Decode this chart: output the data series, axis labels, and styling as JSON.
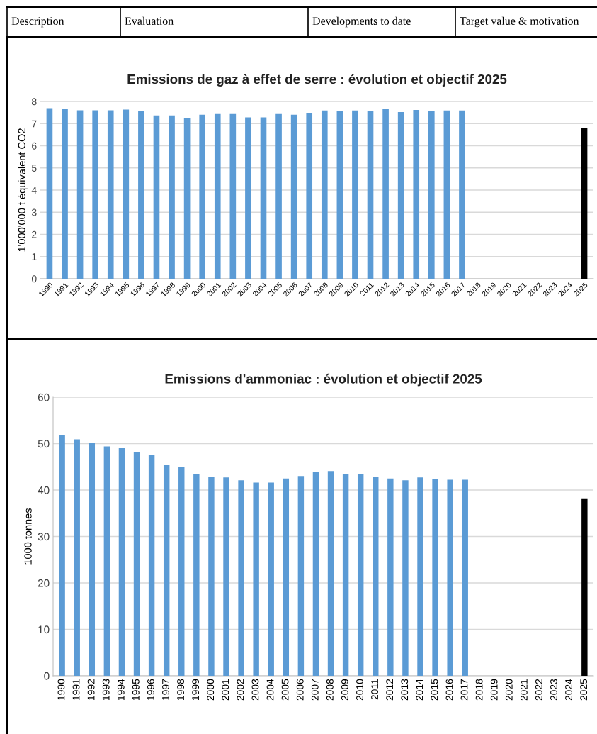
{
  "chart_data": [
    {
      "type": "other",
      "annotations": [
        "Description",
        "Evaluation",
        "Developments to date",
        "Target value & motivation"
      ]
    },
    {
      "type": "bar",
      "title": "Emissions de gaz à effet de serre : évolution et objectif 2025",
      "ylabel": "1'000'000 t équivalent CO2",
      "categories": [
        "1990",
        "1991",
        "1992",
        "1993",
        "1994",
        "1995",
        "1996",
        "1997",
        "1998",
        "1999",
        "2000",
        "2001",
        "2002",
        "2003",
        "2004",
        "2005",
        "2006",
        "2007",
        "2008",
        "2009",
        "2010",
        "2011",
        "2012",
        "2013",
        "2014",
        "2015",
        "2016",
        "2017",
        "2018",
        "2019",
        "2020",
        "2021",
        "2022",
        "2023",
        "2024",
        "2025"
      ],
      "values": [
        7.7,
        7.68,
        7.6,
        7.6,
        7.6,
        7.63,
        7.55,
        7.37,
        7.37,
        7.26,
        7.4,
        7.43,
        7.43,
        7.28,
        7.28,
        7.43,
        7.4,
        7.48,
        7.59,
        7.57,
        7.59,
        7.57,
        7.65,
        7.52,
        7.62,
        7.57,
        7.59,
        7.59,
        null,
        null,
        null,
        null,
        null,
        null,
        null,
        6.82
      ],
      "colors": [
        "#5b9bd5",
        "#5b9bd5",
        "#5b9bd5",
        "#5b9bd5",
        "#5b9bd5",
        "#5b9bd5",
        "#5b9bd5",
        "#5b9bd5",
        "#5b9bd5",
        "#5b9bd5",
        "#5b9bd5",
        "#5b9bd5",
        "#5b9bd5",
        "#5b9bd5",
        "#5b9bd5",
        "#5b9bd5",
        "#5b9bd5",
        "#5b9bd5",
        "#5b9bd5",
        "#5b9bd5",
        "#5b9bd5",
        "#5b9bd5",
        "#5b9bd5",
        "#5b9bd5",
        "#5b9bd5",
        "#5b9bd5",
        "#5b9bd5",
        "#5b9bd5",
        "#5b9bd5",
        "#5b9bd5",
        "#5b9bd5",
        "#5b9bd5",
        "#5b9bd5",
        "#5b9bd5",
        "#5b9bd5",
        "#000000"
      ],
      "ylim": [
        0,
        8
      ],
      "yticks": [
        0,
        1,
        2,
        3,
        4,
        5,
        6,
        7,
        8
      ],
      "grid": "y"
    },
    {
      "type": "bar",
      "title": "Emissions d'ammoniac : évolution et objectif 2025",
      "ylabel": "1000 tonnes",
      "categories": [
        "1990",
        "1991",
        "1992",
        "1993",
        "1994",
        "1995",
        "1996",
        "1997",
        "1998",
        "1999",
        "2000",
        "2001",
        "2002",
        "2003",
        "2004",
        "2005",
        "2006",
        "2007",
        "2008",
        "2009",
        "2010",
        "2011",
        "2012",
        "2013",
        "2014",
        "2015",
        "2016",
        "2017",
        "2018",
        "2019",
        "2020",
        "2021",
        "2022",
        "2023",
        "2024",
        "2025"
      ],
      "values": [
        51.9,
        50.9,
        50.2,
        49.4,
        49.0,
        48.1,
        47.6,
        45.5,
        44.9,
        43.5,
        42.8,
        42.7,
        42.1,
        41.6,
        41.6,
        42.5,
        43.0,
        43.8,
        44.1,
        43.4,
        43.5,
        42.8,
        42.5,
        42.1,
        42.7,
        42.4,
        42.2,
        42.2,
        null,
        null,
        null,
        null,
        null,
        null,
        null,
        38.2
      ],
      "colors": [
        "#5b9bd5",
        "#5b9bd5",
        "#5b9bd5",
        "#5b9bd5",
        "#5b9bd5",
        "#5b9bd5",
        "#5b9bd5",
        "#5b9bd5",
        "#5b9bd5",
        "#5b9bd5",
        "#5b9bd5",
        "#5b9bd5",
        "#5b9bd5",
        "#5b9bd5",
        "#5b9bd5",
        "#5b9bd5",
        "#5b9bd5",
        "#5b9bd5",
        "#5b9bd5",
        "#5b9bd5",
        "#5b9bd5",
        "#5b9bd5",
        "#5b9bd5",
        "#5b9bd5",
        "#5b9bd5",
        "#5b9bd5",
        "#5b9bd5",
        "#5b9bd5",
        "#5b9bd5",
        "#5b9bd5",
        "#5b9bd5",
        "#5b9bd5",
        "#5b9bd5",
        "#5b9bd5",
        "#5b9bd5",
        "#000000"
      ],
      "ylim": [
        0,
        60
      ],
      "yticks": [
        0,
        10,
        20,
        30,
        40,
        50,
        60
      ],
      "grid": "y"
    }
  ]
}
